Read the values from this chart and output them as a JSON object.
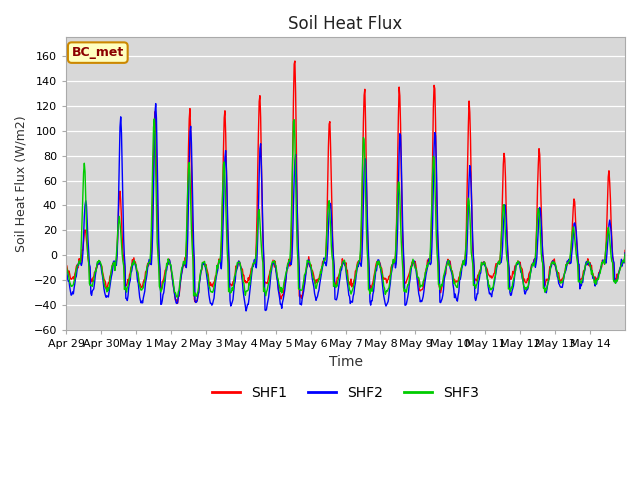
{
  "title": "Soil Heat Flux",
  "xlabel": "Time",
  "ylabel": "Soil Heat Flux (W/m2)",
  "ylim": [
    -60,
    175
  ],
  "yticks": [
    -60,
    -40,
    -20,
    0,
    20,
    40,
    60,
    80,
    100,
    120,
    140,
    160
  ],
  "fig_bg_color": "#ffffff",
  "plot_bg_color": "#d8d8d8",
  "line_colors": [
    "#ff0000",
    "#0000ff",
    "#00cc00"
  ],
  "legend_labels": [
    "SHF1",
    "SHF2",
    "SHF3"
  ],
  "annotation_text": "BC_met",
  "annotation_bg": "#ffffc0",
  "annotation_border": "#cc8800",
  "xtick_labels": [
    "Apr 29",
    "Apr 30",
    "May 1",
    "May 2",
    "May 3",
    "May 4",
    "May 5",
    "May 6",
    "May 7",
    "May 8",
    "May 9",
    "May 10",
    "May 11",
    "May 12",
    "May 13",
    "May 14"
  ]
}
